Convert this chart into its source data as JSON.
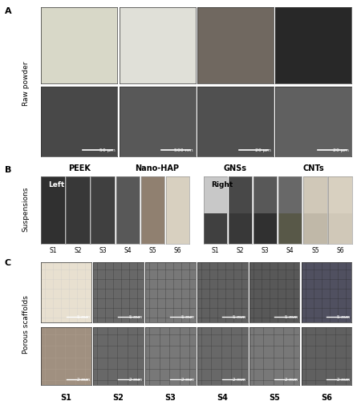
{
  "figure_width": 4.45,
  "figure_height": 5.0,
  "dpi": 100,
  "background_color": "#ffffff",
  "panel_A_label": "A",
  "panel_B_label": "B",
  "panel_C_label": "C",
  "section_labels_right": [
    "Raw powder",
    "Suspensions",
    "Porous scaffolds"
  ],
  "material_labels": [
    "PEEK",
    "Nano-HAP",
    "GNSs",
    "CNTs"
  ],
  "scale_bars_top": [
    "50 μm",
    "500 nm",
    "20 μm",
    "20 μm"
  ],
  "suspension_labels_left": [
    "S6",
    "S5",
    "S4",
    "S3",
    "S2",
    "S1"
  ],
  "suspension_labels_right": [
    "S6",
    "S5",
    "S4",
    "S3",
    "S2",
    "S1"
  ],
  "suspension_left_label": "Left",
  "suspension_right_label": "Right",
  "scaffold_top_labels": [
    "S1",
    "S2",
    "S3",
    "S4",
    "S5",
    "S6"
  ],
  "scaffold_bottom_labels": [
    "S1",
    "S2",
    "S3",
    "S4",
    "S5",
    "S6"
  ],
  "scaffold_scale_top": "5 mm",
  "scaffold_scale_bottom": "2 mm",
  "border_color": "#333333",
  "text_color": "#000000",
  "label_fontsize": 7,
  "panel_label_fontsize": 8,
  "section_label_fontsize": 6.5,
  "title_fontsize": 7,
  "panel_A_top_colors": [
    "#d8d8c8",
    "#e0e0d8",
    "#706860",
    "#282828"
  ],
  "panel_A_bot_colors": [
    "#484848",
    "#585858",
    "#505050",
    "#606060"
  ],
  "suspension_colors_left": [
    "#303030",
    "#383838",
    "#404040",
    "#585858",
    "#908070",
    "#d8d0c0"
  ],
  "suspension_colors_right_top": [
    "#c8c8c8",
    "#484848",
    "#585858",
    "#686868",
    "#d0c8b8",
    "#d8d0c0"
  ],
  "suspension_colors_right_bot": [
    "#404040",
    "#383838",
    "#303030",
    "#585848",
    "#c0b8a8",
    "#d0c8b8"
  ],
  "scaffold_top_colors": [
    "#e8e0d0",
    "#686868",
    "#787878",
    "#606060",
    "#585858",
    "#505060"
  ],
  "scaffold_bot_colors": [
    "#a09080",
    "#686868",
    "#787878",
    "#686868",
    "#787878",
    "#606060"
  ]
}
